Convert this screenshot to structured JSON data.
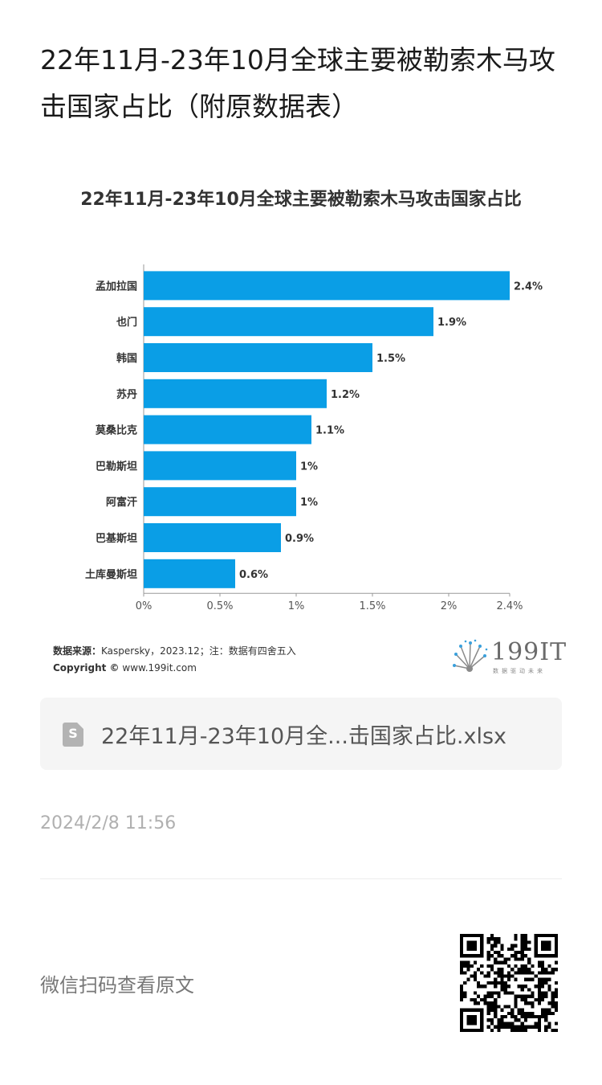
{
  "article": {
    "title": "22年11月-23年10月全球主要被勒索木马攻击国家占比（附原数据表）"
  },
  "chart_data": {
    "type": "bar",
    "orientation": "horizontal",
    "title": "22年11月-23年10月全球主要被勒索木马攻击国家占比",
    "categories": [
      "孟加拉国",
      "也门",
      "韩国",
      "苏丹",
      "莫桑比克",
      "巴勒斯坦",
      "阿富汗",
      "巴基斯坦",
      "土库曼斯坦"
    ],
    "values": [
      2.4,
      1.9,
      1.5,
      1.2,
      1.1,
      1.0,
      1.0,
      0.9,
      0.6
    ],
    "value_labels": [
      "2.4%",
      "1.9%",
      "1.5%",
      "1.2%",
      "1.1%",
      "1%",
      "1%",
      "0.9%",
      "0.6%"
    ],
    "x_ticks": [
      0,
      0.5,
      1,
      1.5,
      2,
      2.4
    ],
    "x_tick_labels": [
      "0%",
      "0.5%",
      "1%",
      "1.5%",
      "2%",
      "2.4%"
    ],
    "xlim": [
      0,
      2.4
    ],
    "xlabel": "",
    "ylabel": "",
    "grid": false,
    "bar_color": "#0a9ee6"
  },
  "source": {
    "label": "数据来源：",
    "text": "Kaspersky，2023.12；注：数据有四舍五入",
    "copyright_label": "Copyright ©",
    "copyright_text": "www.199it.com"
  },
  "logo": {
    "text": "199IT",
    "subtitle": "数据驱动未来"
  },
  "attachment": {
    "icon": "spreadsheet-file-icon",
    "icon_letter": "S",
    "filename": "22年11月-23年10月全...击国家占比.xlsx"
  },
  "meta": {
    "timestamp": "2024/2/8 11:56"
  },
  "footer": {
    "scan_text": "微信扫码查看原文",
    "qr_icon": "qr-code-icon"
  }
}
